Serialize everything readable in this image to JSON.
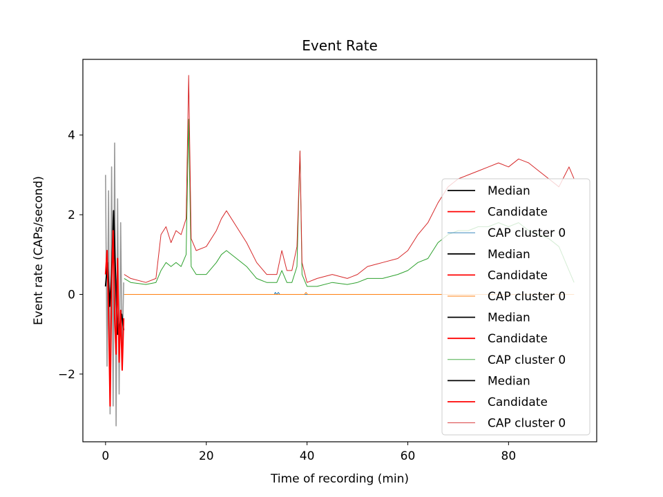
{
  "chart_data": {
    "type": "line",
    "title": "Event Rate",
    "xlabel": "Time of recording (min)",
    "ylabel": "Event rate (CAPs/second)",
    "xlim": [
      -4.5,
      97.5
    ],
    "ylim": [
      -3.7,
      5.9
    ],
    "xticks": [
      0,
      20,
      40,
      60,
      80
    ],
    "xtick_labels": [
      "0",
      "20",
      "40",
      "60",
      "80"
    ],
    "yticks": [
      -2,
      0,
      2,
      4
    ],
    "ytick_labels": [
      "−2",
      "0",
      "2",
      "4"
    ],
    "grid": false,
    "legend_position": "right",
    "legend": [
      {
        "label": "Median",
        "color": "#000000",
        "style": "thick"
      },
      {
        "label": "Candidate",
        "color": "#ff0000",
        "style": "thick"
      },
      {
        "label": "CAP cluster 0",
        "color": "#1f77b4",
        "style": "thin"
      },
      {
        "label": "Median",
        "color": "#000000",
        "style": "thick"
      },
      {
        "label": "Candidate",
        "color": "#ff0000",
        "style": "thick"
      },
      {
        "label": "CAP cluster 0",
        "color": "#ff7f0e",
        "style": "thin"
      },
      {
        "label": "Median",
        "color": "#000000",
        "style": "thick"
      },
      {
        "label": "Candidate",
        "color": "#ff0000",
        "style": "thick"
      },
      {
        "label": "CAP cluster 0",
        "color": "#2ca02c",
        "style": "thin"
      },
      {
        "label": "Median",
        "color": "#000000",
        "style": "thick"
      },
      {
        "label": "Candidate",
        "color": "#ff0000",
        "style": "thick"
      },
      {
        "label": "CAP cluster 0",
        "color": "#d62728",
        "style": "thin"
      }
    ],
    "series": [
      {
        "color": "#999999",
        "width": 1.6,
        "x": [
          0,
          0.3,
          0.6,
          0.9,
          1.2,
          1.5,
          1.8,
          2.1,
          2.4,
          2.7,
          3.0,
          3.3,
          3.6
        ],
        "y": [
          3.0,
          -1.8,
          2.6,
          -3.0,
          3.2,
          -2.8,
          3.8,
          -3.3,
          2.4,
          -2.5,
          1.8,
          -1.5,
          0.3
        ]
      },
      {
        "color": "#000000",
        "width": 2,
        "x": [
          0,
          0.4,
          0.8,
          1.2,
          1.6,
          2.0,
          2.4,
          2.8,
          3.2,
          3.6
        ],
        "y": [
          0.2,
          0.8,
          -0.3,
          0.5,
          2.1,
          0.4,
          -1.0,
          -0.8,
          -0.5,
          -0.9
        ]
      },
      {
        "color": "#ff0000",
        "width": 2,
        "x": [
          0,
          0.3,
          0.6,
          0.9,
          1.2,
          1.5,
          1.8,
          2.1,
          2.4,
          2.7,
          3.0,
          3.3,
          3.6
        ],
        "y": [
          0.5,
          1.1,
          -0.4,
          -2.8,
          0.2,
          1.6,
          -0.6,
          -1.5,
          0.9,
          -1.7,
          -0.4,
          -1.9,
          -0.6
        ]
      },
      {
        "name": "CAP cluster 0",
        "color": "#1f77b4",
        "width": 1,
        "x": [
          3.7,
          33.5,
          33.7,
          34.0,
          34.3,
          34.6,
          35.0,
          93
        ],
        "y": [
          0,
          0,
          0.05,
          0,
          0.05,
          0,
          0,
          0
        ]
      },
      {
        "name": "CAP cluster 0",
        "color": "#ff7f0e",
        "width": 1,
        "x": [
          3.7,
          39.5,
          39.8,
          40.1,
          93
        ],
        "y": [
          0,
          0,
          0.05,
          0,
          0
        ]
      },
      {
        "name": "CAP cluster 0",
        "color": "#2ca02c",
        "width": 1,
        "x": [
          3.7,
          5,
          8,
          10,
          11,
          12,
          13,
          14,
          15,
          16,
          16.5,
          17,
          18,
          20,
          22,
          23,
          24,
          26,
          28,
          30,
          32,
          34,
          35,
          36,
          37,
          38,
          38.6,
          39,
          40,
          42,
          45,
          48,
          50,
          52,
          55,
          58,
          60,
          62,
          64,
          66,
          68,
          70,
          72,
          74,
          76,
          78,
          80,
          82,
          84,
          86,
          88,
          90,
          92,
          93
        ],
        "y": [
          0.4,
          0.3,
          0.25,
          0.3,
          0.6,
          0.8,
          0.7,
          0.8,
          0.7,
          1.0,
          4.4,
          0.7,
          0.5,
          0.5,
          0.8,
          1.0,
          1.1,
          0.9,
          0.7,
          0.4,
          0.3,
          0.3,
          0.6,
          0.3,
          0.3,
          0.7,
          3.6,
          0.5,
          0.2,
          0.2,
          0.3,
          0.25,
          0.3,
          0.4,
          0.4,
          0.5,
          0.6,
          0.8,
          0.9,
          1.3,
          1.5,
          1.6,
          1.6,
          1.7,
          1.7,
          1.8,
          1.7,
          1.8,
          1.6,
          1.5,
          1.4,
          1.2,
          0.6,
          0.3
        ]
      },
      {
        "name": "CAP cluster 0",
        "color": "#d62728",
        "width": 1,
        "x": [
          3.7,
          5,
          8,
          10,
          11,
          12,
          13,
          14,
          15,
          16,
          16.5,
          17,
          18,
          20,
          22,
          23,
          24,
          26,
          28,
          30,
          32,
          34,
          35,
          36,
          37,
          38,
          38.6,
          39,
          40,
          42,
          45,
          48,
          50,
          52,
          55,
          58,
          60,
          62,
          64,
          66,
          68,
          70,
          72,
          74,
          76,
          78,
          80,
          82,
          84,
          86,
          88,
          90,
          92,
          93
        ],
        "y": [
          0.5,
          0.4,
          0.3,
          0.4,
          1.5,
          1.7,
          1.3,
          1.6,
          1.5,
          1.9,
          5.5,
          1.4,
          1.1,
          1.2,
          1.6,
          1.9,
          2.1,
          1.7,
          1.3,
          0.8,
          0.5,
          0.5,
          1.1,
          0.6,
          0.6,
          1.2,
          3.6,
          0.8,
          0.3,
          0.4,
          0.5,
          0.4,
          0.5,
          0.7,
          0.8,
          0.9,
          1.1,
          1.5,
          1.8,
          2.3,
          2.7,
          2.9,
          3.0,
          3.1,
          3.2,
          3.3,
          3.2,
          3.4,
          3.3,
          3.1,
          2.9,
          2.7,
          3.2,
          2.9
        ]
      }
    ]
  }
}
